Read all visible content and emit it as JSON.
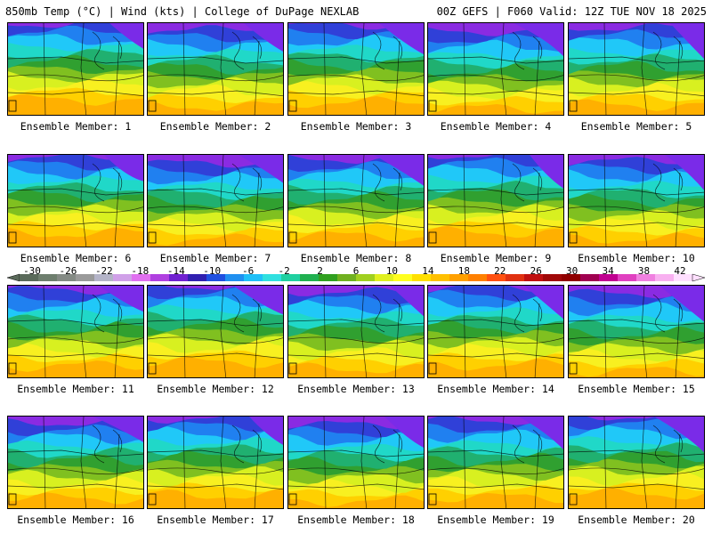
{
  "header": {
    "left": "850mb Temp (°C) | Wind (kts) | College of DuPage NEXLAB",
    "right": "00Z GEFS | F060 Valid: 12Z TUE NOV 18 2025"
  },
  "panels": [
    {
      "caption": "Ensemble Member: 1"
    },
    {
      "caption": "Ensemble Member: 2"
    },
    {
      "caption": "Ensemble Member: 3"
    },
    {
      "caption": "Ensemble Member: 4"
    },
    {
      "caption": "Ensemble Member: 5"
    },
    {
      "caption": "Ensemble Member: 6"
    },
    {
      "caption": "Ensemble Member: 7"
    },
    {
      "caption": "Ensemble Member: 8"
    },
    {
      "caption": "Ensemble Member: 9"
    },
    {
      "caption": "Ensemble Member: 10"
    },
    {
      "caption": "Ensemble Member: 11"
    },
    {
      "caption": "Ensemble Member: 12"
    },
    {
      "caption": "Ensemble Member: 13"
    },
    {
      "caption": "Ensemble Member: 14"
    },
    {
      "caption": "Ensemble Member: 15"
    },
    {
      "caption": "Ensemble Member: 16"
    },
    {
      "caption": "Ensemble Member: 17"
    },
    {
      "caption": "Ensemble Member: 18"
    },
    {
      "caption": "Ensemble Member: 19"
    },
    {
      "caption": "Ensemble Member: 20"
    }
  ],
  "colorbar": {
    "labels": [
      "-30",
      "-26",
      "-22",
      "-18",
      "-14",
      "-10",
      "-6",
      "-2",
      "2",
      "6",
      "10",
      "14",
      "18",
      "22",
      "26",
      "30",
      "34",
      "38",
      "42"
    ],
    "colors": [
      "#5a6a5a",
      "#6e7e6e",
      "#848a84",
      "#9a9a9a",
      "#b4b4c8",
      "#d0a0e8",
      "#e070f0",
      "#b040e0",
      "#7020d0",
      "#3020b0",
      "#2050e0",
      "#2090f0",
      "#20c0f8",
      "#30e0e0",
      "#20d0a0",
      "#20b050",
      "#30a020",
      "#70b020",
      "#a0d020",
      "#e0f020",
      "#ffff20",
      "#ffe000",
      "#ffc000",
      "#ffa000",
      "#ff8000",
      "#ff5010",
      "#e03010",
      "#c01010",
      "#a00808",
      "#900000",
      "#a00050",
      "#c00090",
      "#e040c0",
      "#f080e0",
      "#f8b0f0",
      "#ffe0ff"
    ]
  }
}
